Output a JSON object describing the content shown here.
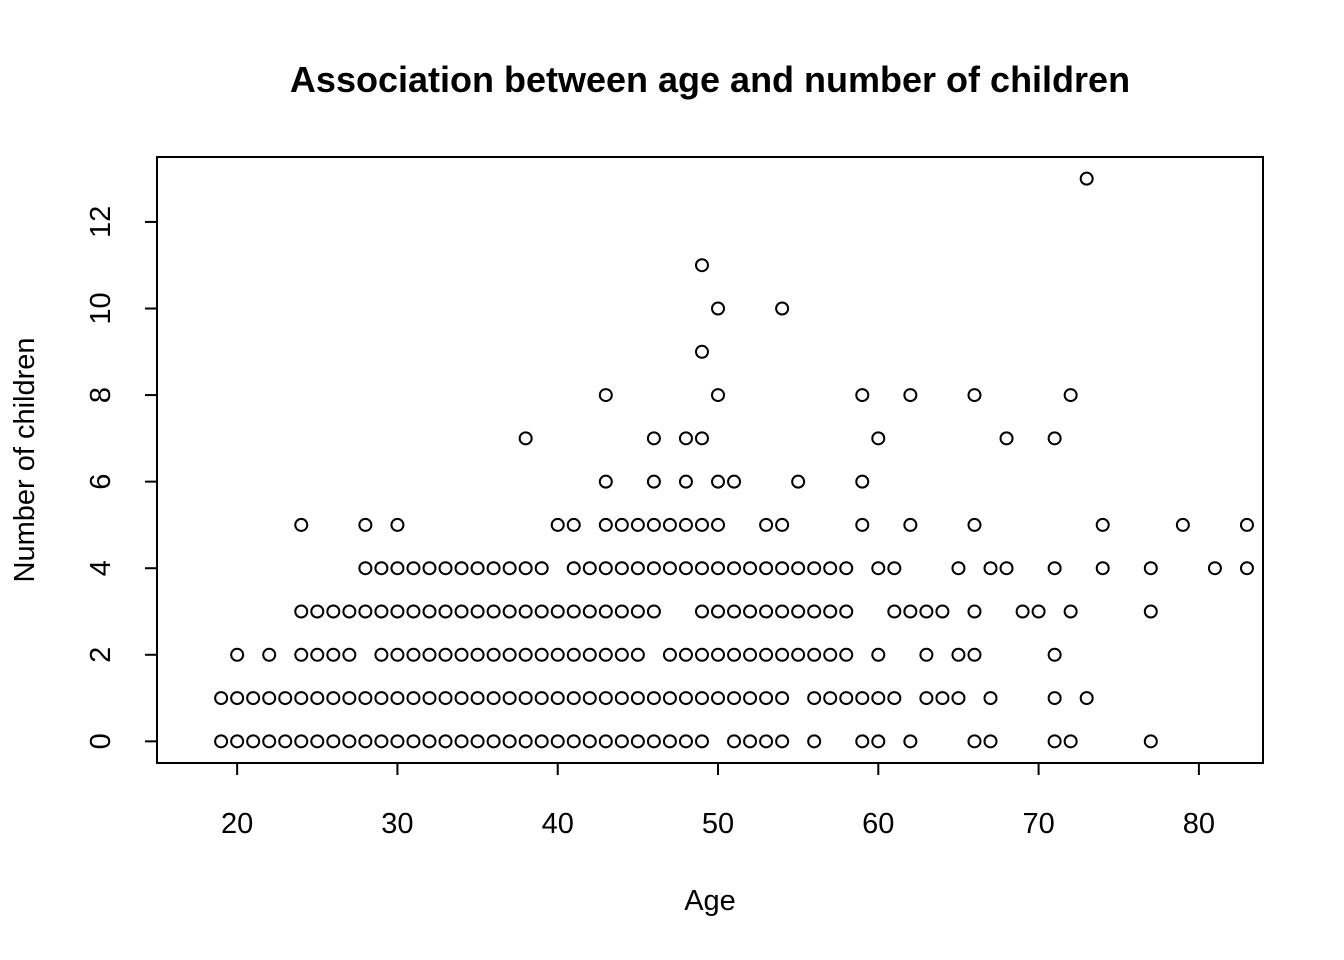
{
  "chart_data": {
    "type": "scatter",
    "title": "Association between age and number of children",
    "xlabel": "Age",
    "ylabel": "Number of children",
    "xlim": [
      15,
      84
    ],
    "ylim": [
      -0.5,
      13.5
    ],
    "xticks": [
      20,
      30,
      40,
      50,
      60,
      70,
      80
    ],
    "yticks": [
      0,
      2,
      4,
      6,
      8,
      10,
      12
    ],
    "grid": false,
    "legend": "none",
    "marker": "open-circle",
    "marker_color": "#000000",
    "points_by_y": {
      "0": [
        19,
        20,
        21,
        22,
        23,
        24,
        25,
        26,
        27,
        28,
        29,
        30,
        31,
        32,
        33,
        34,
        35,
        36,
        37,
        38,
        39,
        40,
        41,
        42,
        43,
        44,
        45,
        46,
        47,
        48,
        49,
        51,
        52,
        53,
        54,
        56,
        59,
        60,
        62,
        66,
        67,
        71,
        72,
        77
      ],
      "1": [
        19,
        20,
        21,
        22,
        23,
        24,
        25,
        26,
        27,
        28,
        29,
        30,
        31,
        32,
        33,
        34,
        35,
        36,
        37,
        38,
        39,
        40,
        41,
        42,
        43,
        44,
        45,
        46,
        47,
        48,
        49,
        50,
        51,
        52,
        53,
        54,
        56,
        57,
        58,
        59,
        60,
        61,
        63,
        64,
        65,
        67,
        71,
        73
      ],
      "2": [
        20,
        22,
        24,
        25,
        26,
        27,
        29,
        30,
        31,
        32,
        33,
        34,
        35,
        36,
        37,
        38,
        39,
        40,
        41,
        42,
        43,
        44,
        45,
        47,
        48,
        49,
        50,
        51,
        52,
        53,
        54,
        55,
        56,
        57,
        58,
        60,
        63,
        65,
        66,
        71
      ],
      "3": [
        24,
        25,
        26,
        27,
        28,
        29,
        30,
        31,
        32,
        33,
        34,
        35,
        36,
        37,
        38,
        39,
        40,
        41,
        42,
        43,
        44,
        45,
        46,
        49,
        50,
        51,
        52,
        53,
        54,
        55,
        56,
        57,
        58,
        61,
        62,
        63,
        64,
        66,
        69,
        70,
        72,
        77
      ],
      "4": [
        28,
        29,
        30,
        31,
        32,
        33,
        34,
        35,
        36,
        37,
        38,
        39,
        41,
        42,
        43,
        44,
        45,
        46,
        47,
        48,
        49,
        50,
        51,
        52,
        53,
        54,
        55,
        56,
        57,
        58,
        60,
        61,
        65,
        67,
        68,
        71,
        74,
        77,
        81,
        83
      ],
      "5": [
        24,
        28,
        30,
        40,
        41,
        43,
        44,
        45,
        46,
        47,
        48,
        49,
        50,
        53,
        54,
        59,
        62,
        66,
        74,
        79,
        83
      ],
      "6": [
        43,
        46,
        48,
        50,
        51,
        55,
        59
      ],
      "7": [
        38,
        46,
        48,
        49,
        60,
        68,
        71
      ],
      "8": [
        43,
        50,
        59,
        62,
        66,
        72
      ],
      "9": [
        49
      ],
      "10": [
        50,
        54
      ],
      "11": [
        49
      ],
      "13": [
        73
      ]
    }
  }
}
